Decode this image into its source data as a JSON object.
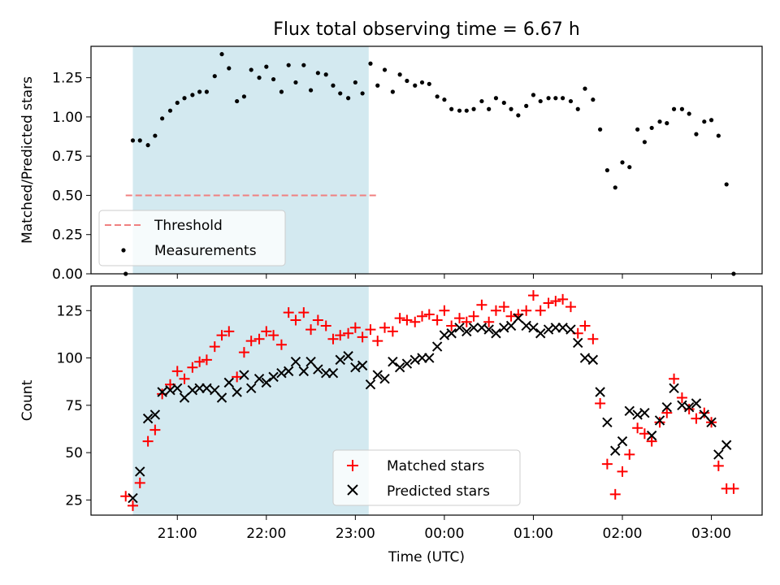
{
  "chart_data": [
    {
      "type": "scatter",
      "title": "Flux total observing time = 6.67 h",
      "xlabel": "",
      "ylabel": "Matched/Predicted stars",
      "ylim": [
        0,
        1.45
      ],
      "yticks": [
        "0.00",
        "0.25",
        "0.50",
        "0.75",
        "1.00",
        "1.25"
      ],
      "observing_window_hours": [
        20.5,
        23.15
      ],
      "window_color": "#d3e9f0",
      "threshold": {
        "name": "Threshold",
        "value": 0.5,
        "x_range_hours": [
          20.42,
          23.25
        ],
        "color": "#f08080"
      },
      "legend": {
        "placement": "lower-left",
        "entries": [
          "Threshold",
          "Measurements"
        ]
      },
      "series": [
        {
          "name": "Measurements",
          "color": "#000000",
          "x_hours": [
            20.42,
            20.5,
            20.58,
            20.67,
            20.75,
            20.83,
            20.92,
            21.0,
            21.08,
            21.17,
            21.25,
            21.33,
            21.42,
            21.5,
            21.58,
            21.67,
            21.75,
            21.83,
            21.92,
            22.0,
            22.08,
            22.17,
            22.25,
            22.33,
            22.42,
            22.5,
            22.58,
            22.67,
            22.75,
            22.83,
            22.92,
            23.0,
            23.08,
            23.17,
            23.25,
            23.33,
            23.42,
            23.5,
            23.58,
            23.67,
            23.75,
            23.83,
            23.92,
            24.0,
            24.08,
            24.17,
            24.25,
            24.33,
            24.42,
            24.5,
            24.58,
            24.67,
            24.75,
            24.83,
            24.92,
            25.0,
            25.08,
            25.17,
            25.25,
            25.33,
            25.42,
            25.5,
            25.58,
            25.67,
            25.75,
            25.83,
            25.92,
            26.0,
            26.08,
            26.17,
            26.25,
            26.33,
            26.42,
            26.5,
            26.58,
            26.67,
            26.75,
            26.83,
            26.92,
            27.0,
            27.08,
            27.17,
            27.25
          ],
          "y": [
            0.0,
            0.85,
            0.85,
            0.82,
            0.88,
            0.99,
            1.04,
            1.09,
            1.12,
            1.14,
            1.16,
            1.16,
            1.26,
            1.4,
            1.31,
            1.1,
            1.13,
            1.3,
            1.25,
            1.32,
            1.24,
            1.16,
            1.33,
            1.22,
            1.33,
            1.17,
            1.28,
            1.27,
            1.2,
            1.15,
            1.12,
            1.22,
            1.15,
            1.34,
            1.2,
            1.3,
            1.16,
            1.27,
            1.23,
            1.2,
            1.22,
            1.21,
            1.13,
            1.11,
            1.05,
            1.04,
            1.04,
            1.05,
            1.1,
            1.05,
            1.12,
            1.09,
            1.05,
            1.01,
            1.07,
            1.14,
            1.1,
            1.12,
            1.12,
            1.12,
            1.1,
            1.05,
            1.18,
            1.11,
            0.92,
            0.66,
            0.55,
            0.71,
            0.68,
            0.92,
            0.84,
            0.93,
            0.97,
            0.96,
            1.05,
            1.05,
            1.02,
            0.89,
            0.97,
            0.98,
            0.88,
            0.57,
            0.0
          ]
        }
      ]
    },
    {
      "type": "scatter",
      "title": "",
      "xlabel": "Time (UTC)",
      "ylabel": "Count",
      "ylim": [
        17,
        138
      ],
      "yticks": [
        "25",
        "50",
        "75",
        "100",
        "125"
      ],
      "xlim_hours": [
        20.03,
        27.57
      ],
      "xticks": [
        "21:00",
        "22:00",
        "23:00",
        "00:00",
        "01:00",
        "02:00",
        "03:00"
      ],
      "observing_window_hours": [
        20.5,
        23.15
      ],
      "window_color": "#d3e9f0",
      "legend": {
        "placement": "lower-center",
        "entries": [
          "Matched stars",
          "Predicted stars"
        ]
      },
      "series": [
        {
          "name": "Matched stars",
          "marker": "+",
          "color": "#ff0000",
          "x_hours": [
            20.42,
            20.5,
            20.58,
            20.67,
            20.75,
            20.83,
            20.92,
            21.0,
            21.08,
            21.17,
            21.25,
            21.33,
            21.42,
            21.5,
            21.58,
            21.67,
            21.75,
            21.83,
            21.92,
            22.0,
            22.08,
            22.17,
            22.25,
            22.33,
            22.42,
            22.5,
            22.58,
            22.67,
            22.75,
            22.83,
            22.92,
            23.0,
            23.08,
            23.17,
            23.25,
            23.33,
            23.42,
            23.5,
            23.58,
            23.67,
            23.75,
            23.83,
            23.92,
            24.0,
            24.08,
            24.17,
            24.25,
            24.33,
            24.42,
            24.5,
            24.58,
            24.67,
            24.75,
            24.83,
            24.92,
            25.0,
            25.08,
            25.17,
            25.25,
            25.33,
            25.42,
            25.5,
            25.58,
            25.67,
            25.75,
            25.83,
            25.92,
            26.0,
            26.08,
            26.17,
            26.25,
            26.33,
            26.42,
            26.5,
            26.58,
            26.67,
            26.75,
            26.83,
            26.92,
            27.0,
            27.08,
            27.17,
            27.25
          ],
          "y": [
            27,
            22,
            34,
            56,
            62,
            81,
            86,
            93,
            89,
            95,
            98,
            99,
            106,
            112,
            114,
            90,
            103,
            109,
            110,
            114,
            112,
            107,
            124,
            120,
            124,
            115,
            120,
            117,
            110,
            112,
            113,
            116,
            111,
            115,
            109,
            116,
            114,
            121,
            120,
            119,
            122,
            123,
            120,
            125,
            117,
            121,
            119,
            122,
            128,
            119,
            125,
            127,
            122,
            123,
            125,
            133,
            125,
            129,
            130,
            131,
            127,
            113,
            117,
            110,
            76,
            44,
            28,
            40,
            49,
            63,
            60,
            56,
            66,
            71,
            89,
            79,
            73,
            68,
            71,
            66,
            43,
            31,
            31
          ]
        },
        {
          "name": "Predicted stars",
          "marker": "x",
          "color": "#000000",
          "x_hours": [
            20.5,
            20.58,
            20.67,
            20.75,
            20.83,
            20.92,
            21.0,
            21.08,
            21.17,
            21.25,
            21.33,
            21.42,
            21.5,
            21.58,
            21.67,
            21.75,
            21.83,
            21.92,
            22.0,
            22.08,
            22.17,
            22.25,
            22.33,
            22.42,
            22.5,
            22.58,
            22.67,
            22.75,
            22.83,
            22.92,
            23.0,
            23.08,
            23.17,
            23.25,
            23.33,
            23.42,
            23.5,
            23.58,
            23.67,
            23.75,
            23.83,
            23.92,
            24.0,
            24.08,
            24.17,
            24.25,
            24.33,
            24.42,
            24.5,
            24.58,
            24.67,
            24.75,
            24.83,
            24.92,
            25.0,
            25.08,
            25.17,
            25.25,
            25.33,
            25.42,
            25.5,
            25.58,
            25.67,
            25.75,
            25.83,
            25.92,
            26.0,
            26.08,
            26.17,
            26.25,
            26.33,
            26.42,
            26.5,
            26.58,
            26.67,
            26.75,
            26.83,
            26.92,
            27.0,
            27.08,
            27.17
          ],
          "y": [
            26,
            40,
            68,
            70,
            82,
            83,
            84,
            79,
            83,
            84,
            84,
            83,
            79,
            87,
            82,
            91,
            84,
            89,
            87,
            90,
            92,
            93,
            98,
            93,
            98,
            94,
            92,
            92,
            99,
            101,
            95,
            96,
            86,
            91,
            89,
            98,
            95,
            97,
            99,
            100,
            100,
            106,
            112,
            113,
            116,
            114,
            116,
            116,
            115,
            113,
            116,
            117,
            121,
            117,
            116,
            113,
            115,
            116,
            116,
            115,
            108,
            100,
            99,
            82,
            66,
            51,
            56,
            72,
            70,
            71,
            59,
            67,
            74,
            84,
            75,
            74,
            76,
            70,
            66,
            49,
            54
          ]
        }
      ]
    }
  ]
}
